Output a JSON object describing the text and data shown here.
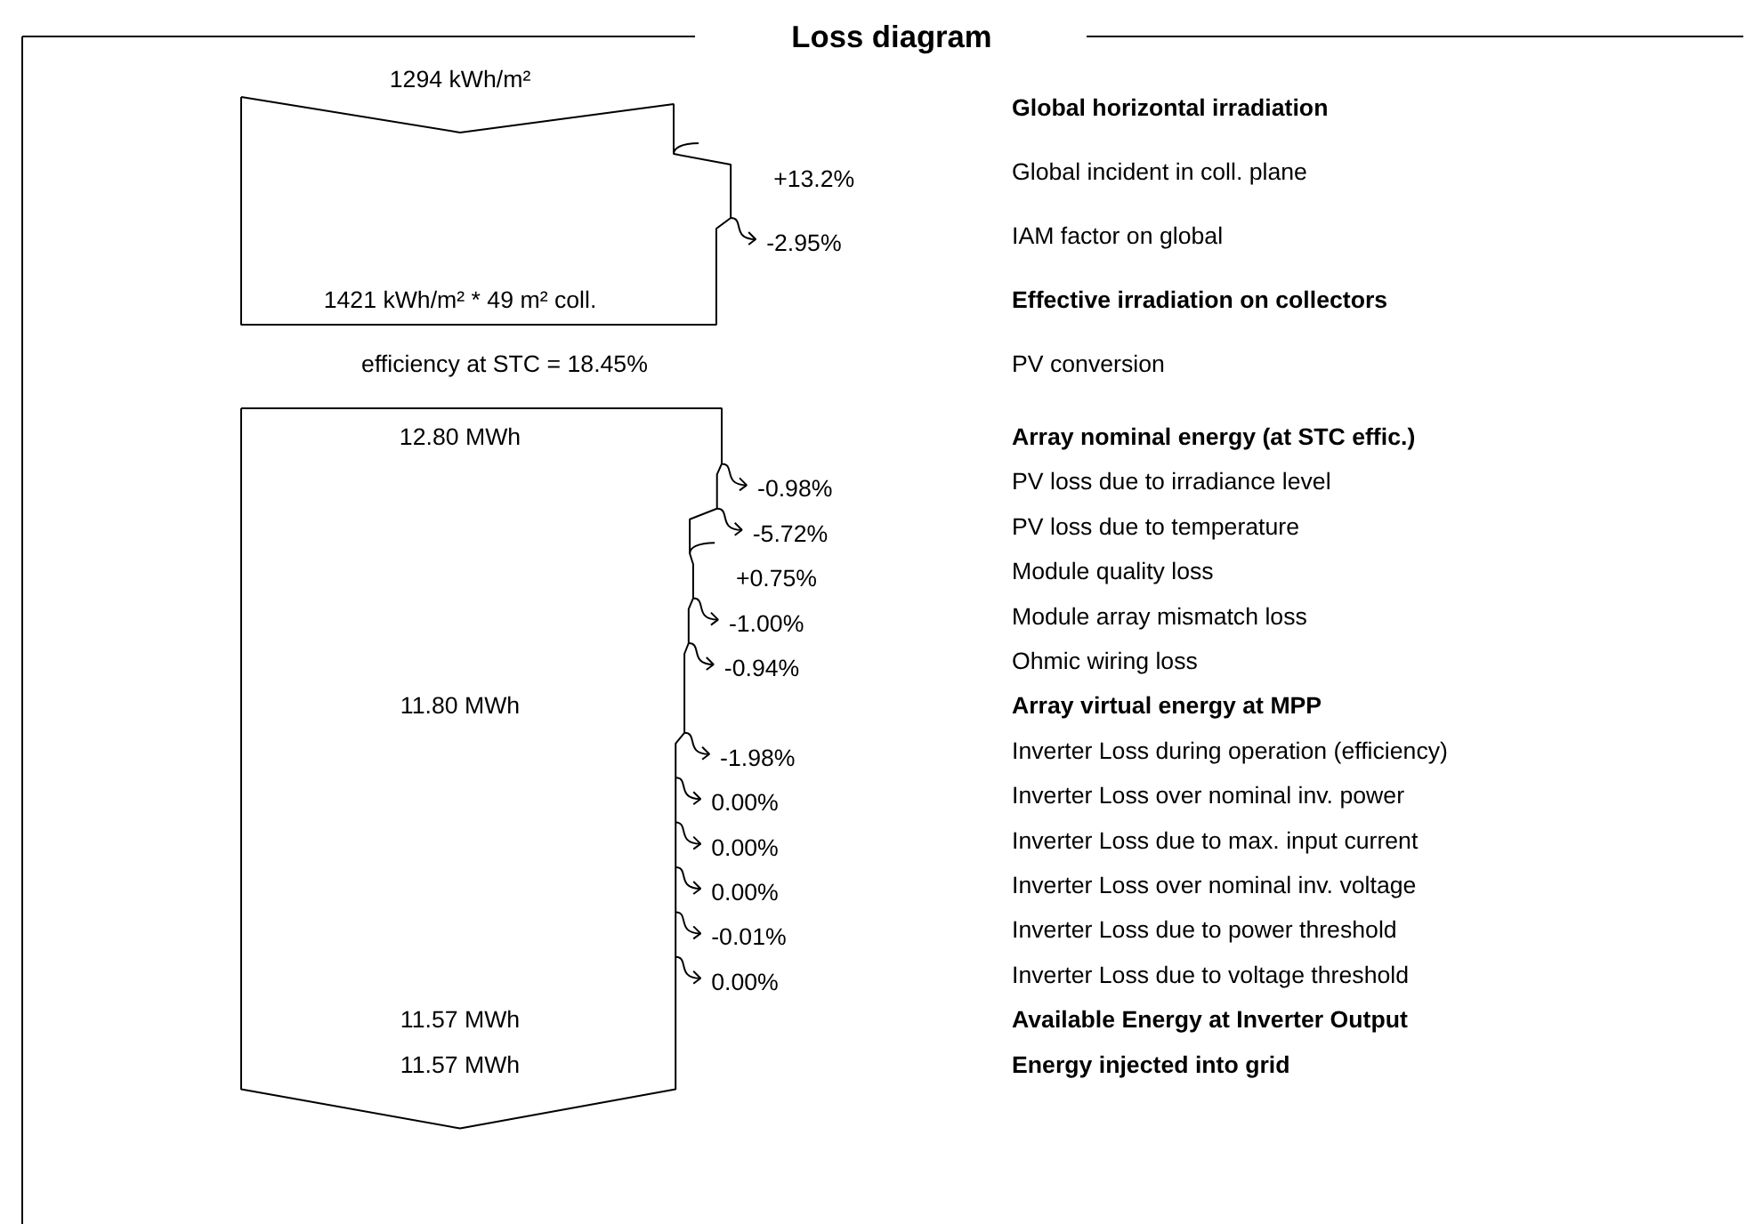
{
  "chart_data": {
    "type": "other",
    "title": "Loss diagram",
    "categories": [
      "Global horizontal irradiation",
      "Global incident in coll. plane",
      "IAM factor on global",
      "Effective irradiation on collectors",
      "PV conversion",
      "Array nominal energy (at STC effic.)",
      "PV loss due to irradiance level",
      "PV loss due to temperature",
      "Module quality loss",
      "Module array mismatch loss",
      "Ohmic wiring loss",
      "Array virtual energy at MPP",
      "Inverter Loss during operation (efficiency)",
      "Inverter Loss over nominal inv. power",
      "Inverter Loss due to max. input current",
      "Inverter Loss over nominal inv. voltage",
      "Inverter Loss due to power threshold",
      "Inverter Loss due to voltage threshold",
      "Available Energy at Inverter Output",
      "Energy injected into grid"
    ],
    "values": [
      null,
      13.2,
      -2.95,
      null,
      null,
      null,
      -0.98,
      -5.72,
      0.75,
      -1.0,
      -0.94,
      null,
      -1.98,
      0.0,
      0.0,
      0.0,
      -0.01,
      0.0,
      null,
      null
    ],
    "value_labels": [
      "1294 kWh/m²",
      "+13.2%",
      "-2.95%",
      "1421 kWh/m² * 49 m² coll.",
      "efficiency at STC = 18.45%",
      "12.80 MWh",
      "-0.98%",
      "-5.72%",
      "+0.75%",
      "-1.00%",
      "-0.94%",
      "11.80 MWh",
      "-1.98%",
      "0.00%",
      "0.00%",
      "0.00%",
      "-0.01%",
      "0.00%",
      "11.57 MWh",
      "11.57 MWh"
    ]
  }
}
